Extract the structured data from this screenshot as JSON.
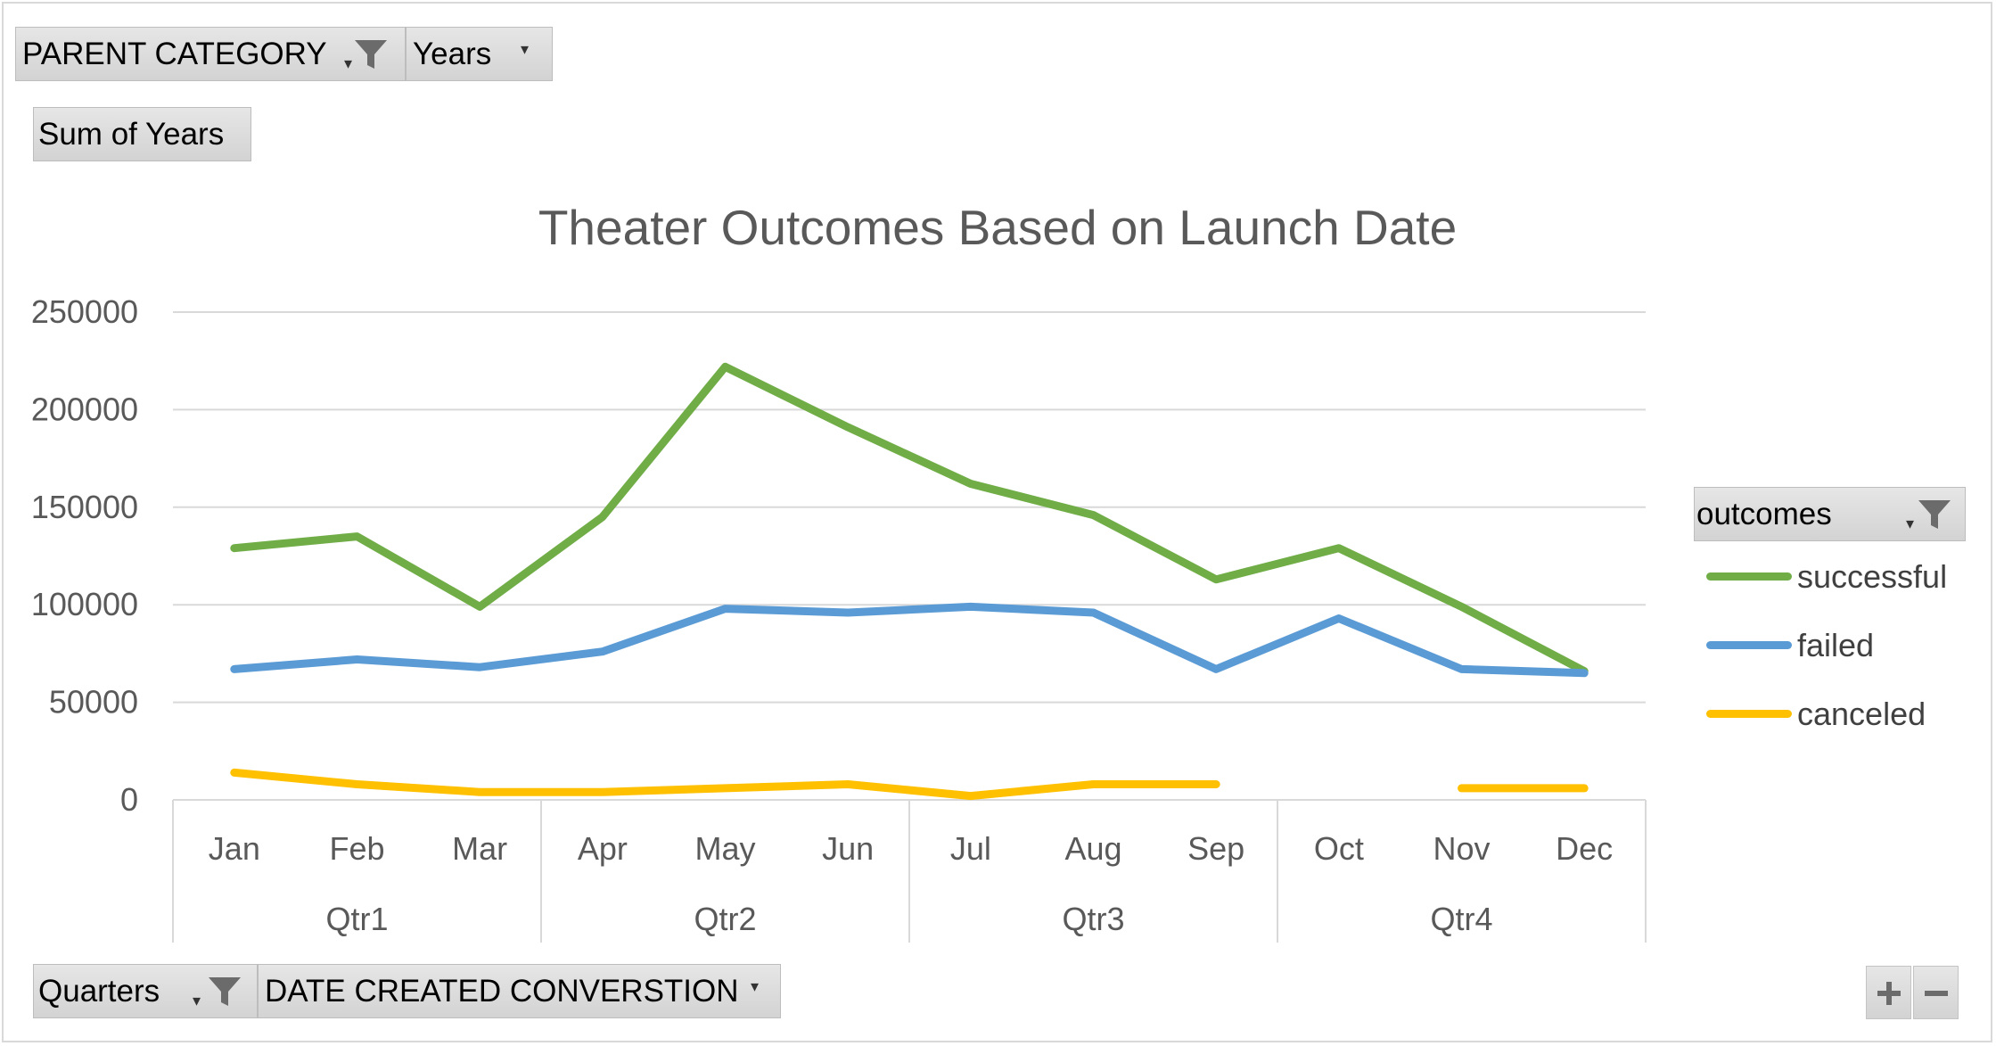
{
  "filters": {
    "parent_category": "PARENT CATEGORY",
    "years": "Years",
    "values_field": "Sum of Years",
    "quarters": "Quarters",
    "date_field": "DATE CREATED CONVERSTION",
    "legend_field": "outcomes"
  },
  "icons": {
    "filter": "funnel-icon",
    "dropdown": "dropdown-arrow-icon",
    "zoom_in": "plus-icon",
    "zoom_out": "minus-icon"
  },
  "chart_data": {
    "type": "line",
    "title": "Theater Outcomes Based on Launch Date",
    "xlabel": "",
    "ylabel": "",
    "categories": [
      "Jan",
      "Feb",
      "Mar",
      "Apr",
      "May",
      "Jun",
      "Jul",
      "Aug",
      "Sep",
      "Oct",
      "Nov",
      "Dec"
    ],
    "groups": [
      {
        "name": "Qtr1",
        "span": 3
      },
      {
        "name": "Qtr2",
        "span": 3
      },
      {
        "name": "Qtr3",
        "span": 3
      },
      {
        "name": "Qtr4",
        "span": 3
      }
    ],
    "ylim": [
      0,
      250000
    ],
    "yticks": [
      0,
      50000,
      100000,
      150000,
      200000,
      250000
    ],
    "grid": true,
    "legend_position": "right",
    "series": [
      {
        "name": "successful",
        "color": "#70ad47",
        "values": [
          129000,
          135000,
          99000,
          145000,
          222000,
          191000,
          162000,
          146000,
          113000,
          129000,
          99000,
          66000
        ]
      },
      {
        "name": "failed",
        "color": "#5b9bd5",
        "values": [
          67000,
          72000,
          68000,
          76000,
          98000,
          96000,
          99000,
          96000,
          67000,
          93000,
          67000,
          65000
        ]
      },
      {
        "name": "canceled",
        "color": "#ffc000",
        "values": [
          14000,
          8000,
          4000,
          4000,
          6000,
          8000,
          2000,
          8000,
          8000,
          null,
          6000,
          6000
        ]
      }
    ]
  }
}
